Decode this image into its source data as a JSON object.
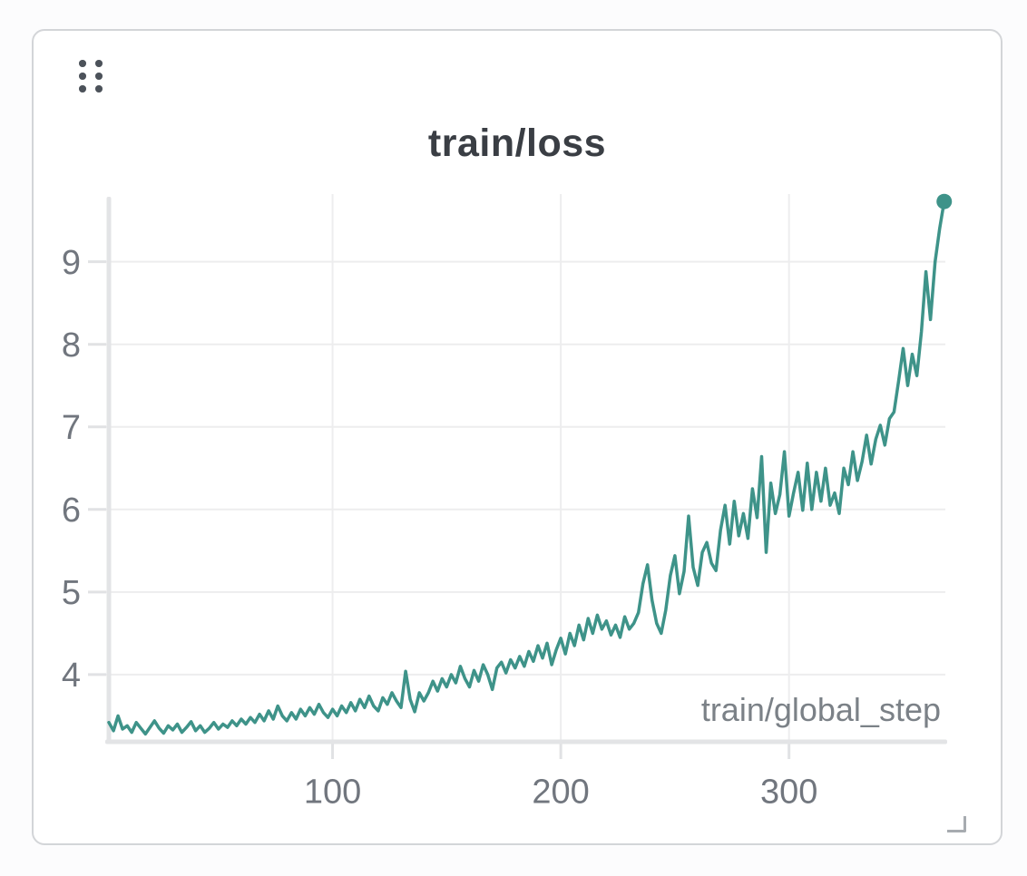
{
  "panel": {
    "drag_handle_icon": "six-dots-grip",
    "resize_handle_icon": "corner-resize"
  },
  "colors": {
    "line": "#3e9389",
    "grid": "#ededee",
    "axis_bar": "#e3e4e6",
    "tick": "#e1e2e4",
    "tick_label": "#71767e",
    "axis_label": "#7b8187",
    "title": "#3a3e44",
    "card_border": "#d3d5d8",
    "card_bg": "#ffffff",
    "handle_dot": "#4c525a",
    "resize_handle": "#a7abb0"
  },
  "chart_data": {
    "type": "line",
    "title": "train/loss",
    "xlabel": "train/global_step",
    "ylabel": "",
    "x_ticks": [
      100,
      200,
      300
    ],
    "y_ticks": [
      4,
      5,
      6,
      7,
      8,
      9
    ],
    "x_range": [
      0,
      368.5
    ],
    "y_range": [
      3.12,
      9.82
    ],
    "grid": true,
    "legend": false,
    "end_marker": true,
    "series": [
      {
        "name": "train/loss",
        "color": "#3e9389",
        "x": [
          2,
          4,
          6,
          8,
          10,
          12,
          14,
          16,
          18,
          20,
          22,
          24,
          26,
          28,
          30,
          32,
          34,
          36,
          38,
          40,
          42,
          44,
          46,
          48,
          50,
          52,
          54,
          56,
          58,
          60,
          62,
          64,
          66,
          68,
          70,
          72,
          74,
          76,
          78,
          80,
          82,
          84,
          86,
          88,
          90,
          92,
          94,
          96,
          98,
          100,
          102,
          104,
          106,
          108,
          110,
          112,
          114,
          116,
          118,
          120,
          122,
          124,
          126,
          128,
          130,
          132,
          134,
          136,
          138,
          140,
          142,
          144,
          146,
          148,
          150,
          152,
          154,
          156,
          158,
          160,
          162,
          164,
          166,
          168,
          170,
          172,
          174,
          176,
          178,
          180,
          182,
          184,
          186,
          188,
          190,
          192,
          194,
          196,
          198,
          200,
          202,
          204,
          206,
          208,
          210,
          212,
          214,
          216,
          218,
          220,
          222,
          224,
          226,
          228,
          230,
          232,
          234,
          236,
          238,
          240,
          242,
          244,
          246,
          248,
          250,
          252,
          254,
          256,
          258,
          260,
          262,
          264,
          266,
          268,
          270,
          272,
          274,
          276,
          278,
          280,
          282,
          284,
          286,
          288,
          290,
          292,
          294,
          296,
          298,
          300,
          302,
          304,
          306,
          308,
          310,
          312,
          314,
          316,
          318,
          320,
          322,
          324,
          326,
          328,
          330,
          332,
          334,
          336,
          338,
          340,
          342,
          344,
          346,
          348,
          350,
          352,
          354,
          356,
          358,
          360,
          362,
          364,
          366,
          368
        ],
        "y": [
          3.42,
          3.32,
          3.5,
          3.34,
          3.38,
          3.3,
          3.42,
          3.35,
          3.28,
          3.36,
          3.44,
          3.35,
          3.29,
          3.38,
          3.33,
          3.4,
          3.3,
          3.36,
          3.43,
          3.32,
          3.38,
          3.3,
          3.35,
          3.42,
          3.34,
          3.4,
          3.36,
          3.44,
          3.38,
          3.46,
          3.4,
          3.48,
          3.42,
          3.52,
          3.44,
          3.56,
          3.46,
          3.62,
          3.5,
          3.44,
          3.54,
          3.46,
          3.58,
          3.5,
          3.6,
          3.52,
          3.64,
          3.54,
          3.48,
          3.58,
          3.5,
          3.62,
          3.54,
          3.66,
          3.56,
          3.7,
          3.6,
          3.74,
          3.62,
          3.56,
          3.72,
          3.64,
          3.78,
          3.68,
          3.6,
          4.04,
          3.7,
          3.55,
          3.78,
          3.68,
          3.78,
          3.92,
          3.8,
          3.95,
          3.85,
          4.0,
          3.9,
          4.1,
          3.95,
          3.85,
          4.05,
          3.92,
          4.12,
          4.0,
          3.82,
          4.08,
          4.15,
          4.02,
          4.18,
          4.08,
          4.22,
          4.1,
          4.28,
          4.16,
          4.35,
          4.2,
          4.38,
          4.12,
          4.3,
          4.44,
          4.25,
          4.5,
          4.35,
          4.6,
          4.42,
          4.68,
          4.5,
          4.72,
          4.55,
          4.65,
          4.48,
          4.6,
          4.45,
          4.7,
          4.55,
          4.62,
          4.75,
          5.1,
          5.33,
          4.9,
          4.62,
          4.5,
          4.78,
          5.2,
          5.44,
          4.98,
          5.25,
          5.92,
          5.3,
          5.08,
          5.48,
          5.6,
          5.35,
          5.26,
          5.75,
          6.05,
          5.58,
          6.1,
          5.68,
          5.95,
          5.65,
          6.25,
          5.9,
          6.64,
          5.48,
          6.32,
          5.95,
          6.18,
          6.7,
          5.92,
          6.2,
          6.45,
          5.99,
          6.56,
          6.0,
          6.45,
          6.1,
          6.5,
          6.05,
          6.2,
          5.95,
          6.5,
          6.3,
          6.7,
          6.35,
          6.58,
          6.9,
          6.55,
          6.85,
          7.02,
          6.78,
          7.1,
          7.18,
          7.55,
          7.95,
          7.5,
          7.88,
          7.62,
          8.15,
          8.88,
          8.3,
          9.0,
          9.4,
          9.73
        ]
      }
    ]
  }
}
